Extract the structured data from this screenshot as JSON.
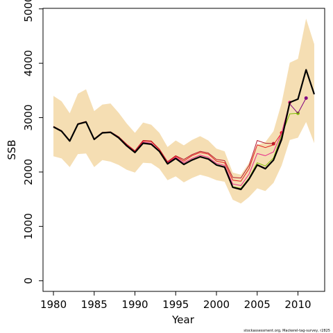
{
  "chart_data": {
    "type": "line",
    "xlabel": "Year",
    "ylabel": "SSB",
    "footer": "stockassessment.org, Mackerel-tag-survey, r2825",
    "x": [
      1980,
      1981,
      1982,
      1983,
      1984,
      1985,
      1986,
      1987,
      1988,
      1989,
      1990,
      1991,
      1992,
      1993,
      1994,
      1995,
      1996,
      1997,
      1998,
      1999,
      2000,
      2001,
      2002,
      2003,
      2004,
      2005,
      2006,
      2007,
      2008,
      2009,
      2010,
      2011,
      2012
    ],
    "xlim": [
      1978.72,
      2013.28
    ],
    "xticks": [
      1980,
      1985,
      1990,
      1995,
      2000,
      2005,
      2010
    ],
    "ylim": [
      -195,
      5010
    ],
    "yticks": [
      0,
      1000,
      2000,
      3000,
      4000,
      5000
    ],
    "band": {
      "color": "#f5deb3",
      "upper": [
        3400,
        3300,
        3080,
        3440,
        3520,
        3120,
        3240,
        3260,
        3090,
        2890,
        2720,
        2910,
        2870,
        2720,
        2460,
        2580,
        2490,
        2590,
        2660,
        2580,
        2430,
        2380,
        1990,
        1950,
        2170,
        2500,
        2550,
        2750,
        3270,
        4010,
        4080,
        4820,
        4350
      ],
      "lower": [
        2290,
        2250,
        2090,
        2330,
        2340,
        2090,
        2220,
        2190,
        2130,
        2040,
        1990,
        2170,
        2160,
        2060,
        1850,
        1920,
        1810,
        1890,
        1950,
        1910,
        1850,
        1820,
        1490,
        1420,
        1540,
        1700,
        1650,
        1800,
        2120,
        2590,
        2630,
        2920,
        2530
      ]
    },
    "series": [
      {
        "color": "#b2182b",
        "width": 1,
        "marker": true,
        "values": [
          2840,
          2760,
          2580,
          2890,
          2930,
          2610,
          2730,
          2740,
          2650,
          2510,
          2390,
          2580,
          2570,
          2420,
          2190,
          2300,
          2230,
          2320,
          2380,
          2350,
          2230,
          2210,
          1900,
          1890,
          2120,
          2580,
          2530,
          2520,
          null,
          null,
          null,
          null,
          null
        ]
      },
      {
        "color": "#e31a1c",
        "width": 1,
        "marker": true,
        "values": [
          2830,
          2750,
          2570,
          2880,
          2920,
          2600,
          2720,
          2730,
          2640,
          2500,
          2380,
          2570,
          2560,
          2410,
          2180,
          2290,
          2200,
          2300,
          2360,
          2330,
          2200,
          2170,
          1850,
          1830,
          2060,
          2500,
          2450,
          2500,
          2720,
          null,
          null,
          null,
          null
        ]
      },
      {
        "color": "#e7298a",
        "width": 1,
        "marker": true,
        "values": [
          2830,
          2750,
          2570,
          2880,
          2920,
          2600,
          2720,
          2730,
          2630,
          2490,
          2370,
          2550,
          2530,
          2390,
          2170,
          2270,
          2170,
          2250,
          2310,
          2270,
          2160,
          2120,
          1780,
          1750,
          1960,
          2340,
          2300,
          2370,
          2720,
          3280,
          null,
          null,
          null
        ]
      },
      {
        "color": "#7fbf00",
        "width": 1,
        "marker": true,
        "values": [
          2830,
          2750,
          2570,
          2880,
          2920,
          2600,
          2720,
          2730,
          2630,
          2480,
          2360,
          2530,
          2510,
          2380,
          2150,
          2250,
          2140,
          2220,
          2280,
          2240,
          2130,
          2090,
          1730,
          1700,
          1890,
          2170,
          2110,
          2260,
          2680,
          3070,
          3080,
          null,
          null
        ]
      },
      {
        "color": "#800080",
        "width": 1,
        "marker": true,
        "values": [
          2830,
          2750,
          2570,
          2880,
          2920,
          2600,
          2720,
          2730,
          2630,
          2480,
          2360,
          2530,
          2510,
          2380,
          2150,
          2250,
          2140,
          2220,
          2280,
          2240,
          2130,
          2090,
          1720,
          1690,
          1880,
          2140,
          2070,
          2230,
          2640,
          3250,
          3080,
          3360,
          null
        ]
      },
      {
        "color": "#000000",
        "width": 2.2,
        "marker": false,
        "values": [
          2830,
          2750,
          2570,
          2880,
          2920,
          2600,
          2720,
          2730,
          2630,
          2480,
          2360,
          2530,
          2510,
          2380,
          2150,
          2250,
          2140,
          2220,
          2280,
          2240,
          2130,
          2090,
          1720,
          1680,
          1870,
          2130,
          2060,
          2220,
          2600,
          3280,
          3340,
          3880,
          3430
        ]
      }
    ]
  }
}
